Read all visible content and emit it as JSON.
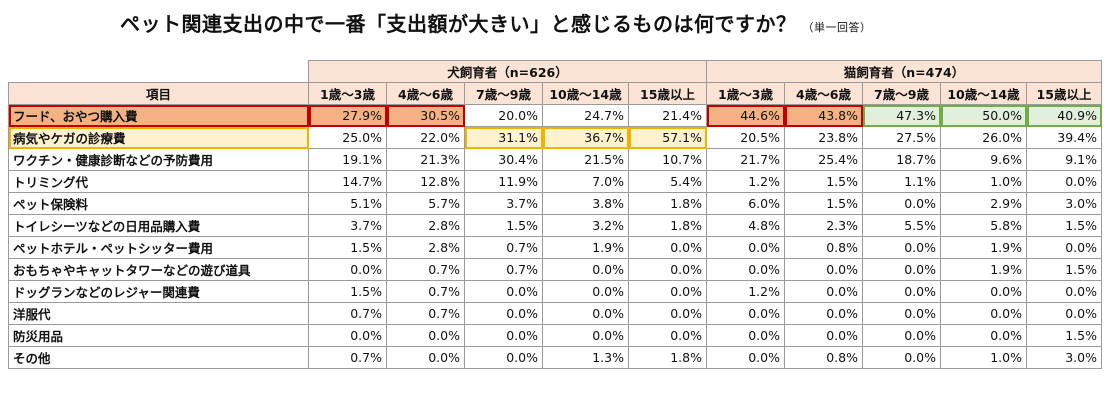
{
  "title": "ペット関連支出の中で一番「支出額が大きい」と感じるものは何ですか？",
  "note": "（単一回答）",
  "header": {
    "item_label": "項目",
    "dog_group": "犬飼育者（n=626）",
    "cat_group": "猫飼育者（n=474）",
    "age_columns": [
      "1歳～3歳",
      "4歳～6歳",
      "7歳～9歳",
      "10歳～14歳",
      "15歳以上"
    ]
  },
  "rows": [
    {
      "label": "フード、おやつ購入費",
      "dog": [
        "27.9%",
        "30.5%",
        "20.0%",
        "24.7%",
        "21.4%"
      ],
      "cat": [
        "44.6%",
        "43.8%",
        "47.3%",
        "50.0%",
        "40.9%"
      ]
    },
    {
      "label": "病気やケガの診療費",
      "dog": [
        "25.0%",
        "22.0%",
        "31.1%",
        "36.7%",
        "57.1%"
      ],
      "cat": [
        "20.5%",
        "23.8%",
        "27.5%",
        "26.0%",
        "39.4%"
      ]
    },
    {
      "label": "ワクチン・健康診断などの予防費用",
      "dog": [
        "19.1%",
        "21.3%",
        "30.4%",
        "21.5%",
        "10.7%"
      ],
      "cat": [
        "21.7%",
        "25.4%",
        "18.7%",
        "9.6%",
        "9.1%"
      ]
    },
    {
      "label": "トリミング代",
      "dog": [
        "14.7%",
        "12.8%",
        "11.9%",
        "7.0%",
        "5.4%"
      ],
      "cat": [
        "1.2%",
        "1.5%",
        "1.1%",
        "1.0%",
        "0.0%"
      ]
    },
    {
      "label": "ペット保険料",
      "dog": [
        "5.1%",
        "5.7%",
        "3.7%",
        "3.8%",
        "1.8%"
      ],
      "cat": [
        "6.0%",
        "1.5%",
        "0.0%",
        "2.9%",
        "3.0%"
      ]
    },
    {
      "label": "トイレシーツなどの日用品購入費",
      "dog": [
        "3.7%",
        "2.8%",
        "1.5%",
        "3.2%",
        "1.8%"
      ],
      "cat": [
        "4.8%",
        "2.3%",
        "5.5%",
        "5.8%",
        "1.5%"
      ]
    },
    {
      "label": "ペットホテル・ペットシッター費用",
      "dog": [
        "1.5%",
        "2.8%",
        "0.7%",
        "1.9%",
        "0.0%"
      ],
      "cat": [
        "0.0%",
        "0.8%",
        "0.0%",
        "1.9%",
        "0.0%"
      ]
    },
    {
      "label": "おもちゃやキャットタワーなどの遊び道具",
      "dog": [
        "0.0%",
        "0.7%",
        "0.7%",
        "0.0%",
        "0.0%"
      ],
      "cat": [
        "0.0%",
        "0.0%",
        "0.0%",
        "1.9%",
        "1.5%"
      ]
    },
    {
      "label": "ドッグランなどのレジャー関連費",
      "dog": [
        "1.5%",
        "0.7%",
        "0.0%",
        "0.0%",
        "0.0%"
      ],
      "cat": [
        "1.2%",
        "0.0%",
        "0.0%",
        "0.0%",
        "0.0%"
      ]
    },
    {
      "label": "洋服代",
      "dog": [
        "0.7%",
        "0.7%",
        "0.0%",
        "0.0%",
        "0.0%"
      ],
      "cat": [
        "0.0%",
        "0.0%",
        "0.0%",
        "0.0%",
        "0.0%"
      ]
    },
    {
      "label": "防災用品",
      "dog": [
        "0.0%",
        "0.0%",
        "0.0%",
        "0.0%",
        "0.0%"
      ],
      "cat": [
        "0.0%",
        "0.0%",
        "0.0%",
        "0.0%",
        "1.5%"
      ]
    },
    {
      "label": "その他",
      "dog": [
        "0.7%",
        "0.0%",
        "0.0%",
        "1.3%",
        "1.8%"
      ],
      "cat": [
        "0.0%",
        "0.8%",
        "0.0%",
        "1.0%",
        "3.0%"
      ]
    }
  ],
  "colors": {
    "header_bg": "#fbe4d5",
    "food_row": "#f4b183",
    "medical_row": "#fff2cc",
    "red_border": "#c00000",
    "yellow_border": "#f0b400",
    "green_border": "#70ad47",
    "green_fill": "#e2efda"
  }
}
